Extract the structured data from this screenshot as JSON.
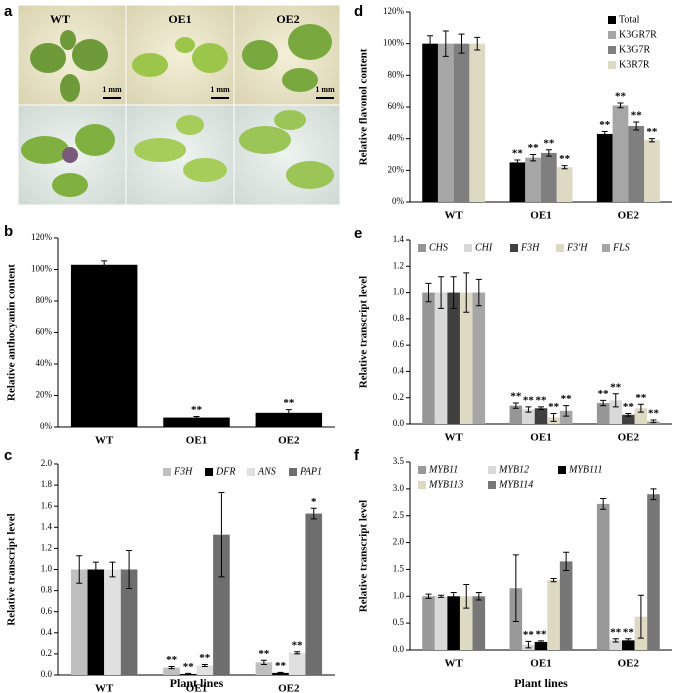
{
  "photo_panel": {
    "panel": "a",
    "columns": [
      "WT",
      "OE1",
      "OE2"
    ],
    "scale_bar": "1 mm"
  },
  "chart_data": [
    {
      "type": "bar",
      "panel": "b",
      "ylabel": "Relative anthocyanin content",
      "categories": [
        "WT",
        "OE1",
        "OE2"
      ],
      "values": [
        103,
        6,
        9
      ],
      "errors": [
        2.5,
        0.7,
        2
      ],
      "sig": [
        null,
        "**",
        "**"
      ],
      "color": "#000000",
      "ylim": [
        0,
        120
      ],
      "yticks": [
        {
          "value": 0,
          "label": "0%"
        },
        {
          "value": 20,
          "label": "20%"
        },
        {
          "value": 40,
          "label": "40%"
        },
        {
          "value": 60,
          "label": "60%"
        },
        {
          "value": 80,
          "label": "80%"
        },
        {
          "value": 100,
          "label": "100%"
        },
        {
          "value": 120,
          "label": "120%"
        }
      ]
    },
    {
      "type": "bar",
      "panel": "c",
      "ylabel": "Relative transcript level",
      "xlabel": "Plant lines",
      "categories": [
        "WT",
        "OE1",
        "OE2"
      ],
      "legend": "upper right",
      "ylim": [
        0,
        2
      ],
      "yticks": [
        {
          "value": 0,
          "label": "0.0"
        },
        {
          "value": 0.2,
          "label": "0.2"
        },
        {
          "value": 0.4,
          "label": "0.4"
        },
        {
          "value": 0.6,
          "label": "0.6"
        },
        {
          "value": 0.8,
          "label": "0.8"
        },
        {
          "value": 1,
          "label": "1.0"
        },
        {
          "value": 1.2,
          "label": "1.2"
        },
        {
          "value": 1.4,
          "label": "1.4"
        },
        {
          "value": 1.6,
          "label": "1.6"
        },
        {
          "value": 1.8,
          "label": "1.8"
        },
        {
          "value": 2,
          "label": "2.0"
        }
      ],
      "series": [
        {
          "name": "F3H",
          "color": "#bfbfbf",
          "values": [
            1.0,
            0.07,
            0.12
          ],
          "errors": [
            0.13,
            0.01,
            0.02
          ],
          "sig": [
            null,
            "**",
            "**"
          ]
        },
        {
          "name": "DFR",
          "color": "#000000",
          "values": [
            1.0,
            0.01,
            0.02
          ],
          "errors": [
            0.07,
            0.005,
            0.005
          ],
          "sig": [
            null,
            "**",
            "**"
          ]
        },
        {
          "name": "ANS",
          "color": "#e0e0e0",
          "values": [
            1.0,
            0.09,
            0.21
          ],
          "errors": [
            0.07,
            0.01,
            0.01
          ],
          "sig": [
            null,
            "**",
            "**"
          ]
        },
        {
          "name": "PAP1",
          "color": "#6e6e6e",
          "values": [
            1.0,
            1.33,
            1.53
          ],
          "errors": [
            0.18,
            0.4,
            0.05
          ],
          "sig": [
            null,
            null,
            "*"
          ]
        }
      ]
    },
    {
      "type": "bar",
      "panel": "d",
      "ylabel": "Relative flavonol content",
      "categories": [
        "WT",
        "OE1",
        "OE2"
      ],
      "legend": "upper right",
      "ylim": [
        0,
        120
      ],
      "yticks": [
        {
          "value": 0,
          "label": "0%"
        },
        {
          "value": 20,
          "label": "20%"
        },
        {
          "value": 40,
          "label": "40%"
        },
        {
          "value": 60,
          "label": "60%"
        },
        {
          "value": 80,
          "label": "80%"
        },
        {
          "value": 100,
          "label": "100%"
        },
        {
          "value": 120,
          "label": "120%"
        }
      ],
      "series": [
        {
          "name": "Total",
          "color": "#000000",
          "values": [
            100,
            25,
            43
          ],
          "errors": [
            5,
            1.5,
            1.5
          ],
          "sig": [
            null,
            "**",
            "**"
          ]
        },
        {
          "name": "K3GR7R",
          "color": "#a6a6a6",
          "values": [
            100,
            28,
            61
          ],
          "errors": [
            8,
            2,
            1.5
          ],
          "sig": [
            null,
            "**",
            "**"
          ]
        },
        {
          "name": "K3G7R",
          "color": "#7f7f7f",
          "values": [
            100,
            31,
            48
          ],
          "errors": [
            6,
            2,
            2.5
          ],
          "sig": [
            null,
            "**",
            "**"
          ]
        },
        {
          "name": "K3R7R",
          "color": "#ddd9c3",
          "values": [
            100,
            22,
            39
          ],
          "errors": [
            4,
            1,
            1
          ],
          "sig": [
            null,
            "**",
            "**"
          ]
        }
      ]
    },
    {
      "type": "bar",
      "panel": "e",
      "ylabel": "Relative transcript level",
      "categories": [
        "WT",
        "OE1",
        "OE2"
      ],
      "legend": "upper left",
      "ylim": [
        0,
        1.4
      ],
      "yticks": [
        {
          "value": 0,
          "label": "0.0"
        },
        {
          "value": 0.2,
          "label": "0.2"
        },
        {
          "value": 0.4,
          "label": "0.4"
        },
        {
          "value": 0.6,
          "label": "0.6"
        },
        {
          "value": 0.8,
          "label": "0.8"
        },
        {
          "value": 1,
          "label": "1.0"
        },
        {
          "value": 1.2,
          "label": "1.2"
        },
        {
          "value": 1.4,
          "label": "1.4"
        }
      ],
      "series": [
        {
          "name": "CHS",
          "color": "#969696",
          "values": [
            1.0,
            0.14,
            0.16
          ],
          "errors": [
            0.07,
            0.02,
            0.02
          ],
          "sig": [
            null,
            "**",
            "**"
          ]
        },
        {
          "name": "CHI",
          "color": "#d9d9d9",
          "values": [
            1.0,
            0.11,
            0.18
          ],
          "errors": [
            0.12,
            0.02,
            0.05
          ],
          "sig": [
            null,
            "**",
            "**"
          ]
        },
        {
          "name": "F3H",
          "color": "#404040",
          "values": [
            1.0,
            0.12,
            0.07
          ],
          "errors": [
            0.12,
            0.01,
            0.01
          ],
          "sig": [
            null,
            "**",
            "**"
          ]
        },
        {
          "name": "F3'H",
          "color": "#ddd9c3",
          "values": [
            1.0,
            0.05,
            0.12
          ],
          "errors": [
            0.15,
            0.03,
            0.03
          ],
          "sig": [
            null,
            "**",
            "**"
          ]
        },
        {
          "name": "FLS",
          "color": "#a6a6a6",
          "values": [
            1.0,
            0.1,
            0.02
          ],
          "errors": [
            0.1,
            0.04,
            0.01
          ],
          "sig": [
            null,
            "**",
            "**"
          ]
        }
      ]
    },
    {
      "type": "bar",
      "panel": "f",
      "ylabel": "Relative transcript level",
      "xlabel": "Plant lines",
      "categories": [
        "WT",
        "OE1",
        "OE2"
      ],
      "legend": "upper left",
      "ylim": [
        0,
        3.5
      ],
      "yticks": [
        {
          "value": 0,
          "label": "0.0"
        },
        {
          "value": 0.5,
          "label": "0.5"
        },
        {
          "value": 1,
          "label": "1.0"
        },
        {
          "value": 1.5,
          "label": "1.5"
        },
        {
          "value": 2,
          "label": "2.0"
        },
        {
          "value": 2.5,
          "label": "2.5"
        },
        {
          "value": 3,
          "label": "3.0"
        },
        {
          "value": 3.5,
          "label": "3.5"
        }
      ],
      "series": [
        {
          "name": "MYB11",
          "color": "#999999",
          "values": [
            1.0,
            1.15,
            2.72
          ],
          "errors": [
            0.04,
            0.62,
            0.1
          ],
          "sig": [
            null,
            null,
            null
          ]
        },
        {
          "name": "MYB12",
          "color": "#d9d9d9",
          "values": [
            1.0,
            0.1,
            0.18
          ],
          "errors": [
            0.02,
            0.06,
            0.03
          ],
          "sig": [
            null,
            "**",
            "**"
          ]
        },
        {
          "name": "MYB111",
          "color": "#000000",
          "values": [
            1.0,
            0.15,
            0.18
          ],
          "errors": [
            0.07,
            0.02,
            0.03
          ],
          "sig": [
            null,
            "**",
            "**"
          ]
        },
        {
          "name": "MYB113",
          "color": "#ddd9c3",
          "values": [
            1.0,
            1.3,
            0.62
          ],
          "errors": [
            0.22,
            0.03,
            0.4
          ],
          "sig": [
            null,
            null,
            null
          ]
        },
        {
          "name": "MYB114",
          "color": "#777777",
          "values": [
            1.0,
            1.65,
            2.9
          ],
          "errors": [
            0.07,
            0.17,
            0.1
          ],
          "sig": [
            null,
            null,
            null
          ]
        }
      ]
    }
  ]
}
